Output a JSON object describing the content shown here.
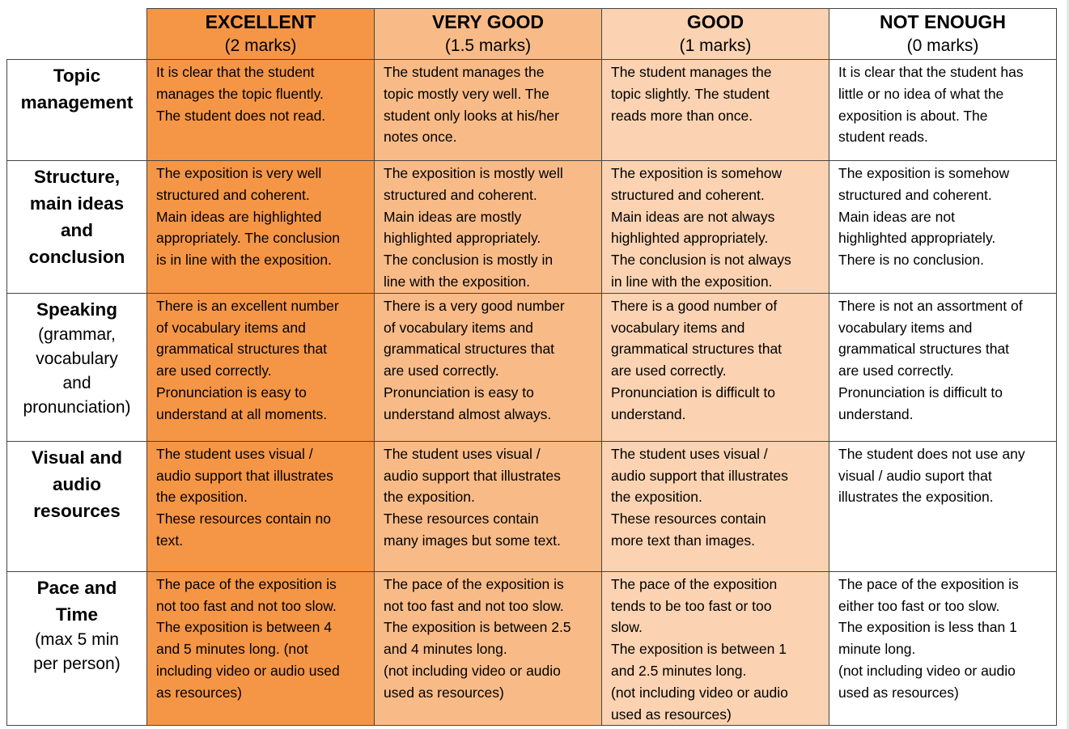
{
  "colors": {
    "excellent": "#f59646",
    "very_good": "#f8bb88",
    "good": "#fbd3b2",
    "not_enough": "#ffffff",
    "border": "#444444"
  },
  "levels": [
    {
      "title": "EXCELLENT",
      "marks": "(2 marks)"
    },
    {
      "title": "VERY GOOD",
      "marks": "(1.5 marks)"
    },
    {
      "title": "GOOD",
      "marks": "(1 marks)"
    },
    {
      "title": "NOT ENOUGH",
      "marks": "(0 marks)"
    }
  ],
  "criteria": [
    {
      "name_lines": [
        "Topic",
        "management"
      ],
      "sub_lines": [],
      "cells": [
        [
          "It is clear that the student",
          "manages the topic fluently.",
          "The student does not read."
        ],
        [
          "The student manages the",
          "topic mostly very well. The",
          "student only looks at his/her",
          "notes once."
        ],
        [
          "The student manages the",
          "topic slightly. The student",
          "reads more than once."
        ],
        [
          "It is clear that the student has",
          "little or no idea of what the",
          "exposition is about. The",
          "student reads."
        ]
      ]
    },
    {
      "name_lines": [
        "Structure,",
        "main ideas",
        "and",
        "conclusion"
      ],
      "sub_lines": [],
      "cells": [
        [
          "The exposition is very well",
          "structured and coherent.",
          "Main ideas are highlighted",
          "appropriately. The conclusion",
          "is in line with the exposition."
        ],
        [
          "The exposition is mostly well",
          "structured and coherent.",
          "Main ideas are mostly",
          "highlighted appropriately.",
          "The conclusion is mostly in",
          "line with the exposition."
        ],
        [
          "The exposition is somehow",
          "structured and coherent.",
          "Main ideas are not always",
          "highlighted appropriately.",
          "The conclusion is not always",
          "in line with the exposition."
        ],
        [
          "The exposition is somehow",
          "structured and coherent.",
          "Main ideas are not",
          "highlighted appropriately.",
          "There is no conclusion."
        ]
      ]
    },
    {
      "name_lines": [
        "Speaking"
      ],
      "sub_lines": [
        "(grammar,",
        "vocabulary",
        "and",
        "pronunciation)"
      ],
      "cells": [
        [
          "There is an excellent number",
          "of vocabulary items and",
          "grammatical structures that",
          "are used correctly.",
          "Pronunciation is easy to",
          "understand at all moments."
        ],
        [
          "There is a very good number",
          "of vocabulary items and",
          "grammatical structures that",
          "are used correctly.",
          "Pronunciation is easy to",
          "understand almost always."
        ],
        [
          "There is a good number of",
          "vocabulary items and",
          "grammatical structures that",
          "are used correctly.",
          "Pronunciation is difficult to",
          "understand."
        ],
        [
          "There is not an assortment of",
          "vocabulary items and",
          "grammatical structures that",
          "are used correctly.",
          "Pronunciation is difficult to",
          "understand."
        ]
      ]
    },
    {
      "name_lines": [
        "Visual and",
        "audio",
        "resources"
      ],
      "sub_lines": [],
      "cells": [
        [
          "The student uses visual /",
          "audio support that illustrates",
          "the exposition.",
          "These resources contain no",
          "text."
        ],
        [
          "The student uses visual /",
          "audio support that illustrates",
          "the exposition.",
          "These resources contain",
          "many images but some text."
        ],
        [
          "The student uses visual /",
          "audio support that illustrates",
          "the exposition.",
          "These resources contain",
          "more text than images."
        ],
        [
          "The student does not use any",
          "visual / audio suport that",
          "illustrates the exposition."
        ]
      ]
    },
    {
      "name_lines": [
        "Pace and",
        "Time"
      ],
      "sub_lines": [
        "(max 5 min",
        "per person)"
      ],
      "cells": [
        [
          "The pace of the exposition is",
          "not too fast and not too slow.",
          "The exposition is between 4",
          "and 5 minutes long. (not",
          "including video or audio used",
          "as resources)"
        ],
        [
          "The pace of the exposition is",
          "not too fast and not too slow.",
          "The exposition is between 2.5",
          "and 4 minutes long.",
          "(not including video or audio",
          "used as resources)"
        ],
        [
          "The pace of the exposition",
          "tends to be too fast or too",
          "slow.",
          "The exposition is between 1",
          "and 2.5 minutes long.",
          "(not including video or audio",
          "used as resources)"
        ],
        [
          "The pace of the exposition is",
          "either too fast or too slow.",
          "The exposition is less than 1",
          "minute long.",
          "(not including video or audio",
          "used as resources)"
        ]
      ]
    }
  ]
}
